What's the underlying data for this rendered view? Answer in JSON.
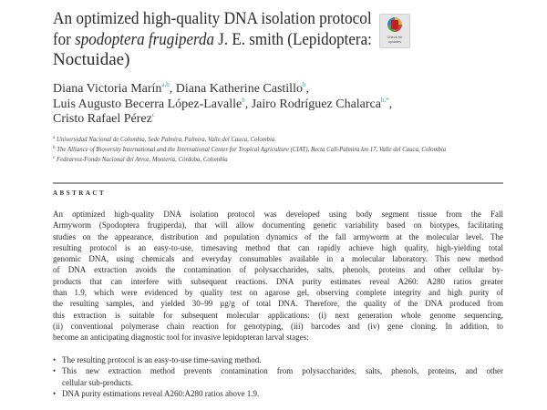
{
  "title": {
    "line1": "An optimized high-quality DNA isolation protocol",
    "line2_pre": "for ",
    "line2_italic": "spodoptera frugiperda",
    "line2_post": " J. E. smith (Lepidoptera:",
    "line3": "Noctuidae)"
  },
  "badge": {
    "label": "Check for updates"
  },
  "authors": [
    {
      "name": "Diana Victoria Marín",
      "sup": "a,b",
      "sep": ", "
    },
    {
      "name": "Diana Katherine Castillo",
      "sup": "b",
      "sep": ","
    },
    {
      "name": "Luis Augusto Becerra López-Lavalle",
      "sup": "b",
      "sep": ", "
    },
    {
      "name": "Jairo Rodríguez Chalarca",
      "sup": "b,*",
      "sep": ","
    },
    {
      "name": "Cristo Rafael Pérez",
      "sup": "c",
      "sep": ""
    }
  ],
  "affiliations": [
    {
      "key": "a",
      "text": "Universidad Nacional de Colombia, Sede Palmira, Palmira, Valle del Cauca, Colombia"
    },
    {
      "key": "b",
      "text": "The Alliance of Bioversity International and the International Center for Tropical Agriculture (CIAT), Recta Cali-Palmira km 17, Valle del Cauca, Colombia"
    },
    {
      "key": "c",
      "text": "Fedearroz-Fondo Nacional del Arroz, Montería, Córdoba, Colombia"
    }
  ],
  "abstract": {
    "heading": "ABSTRACT",
    "lines": [
      "An optimized high-quality DNA isolation protocol was developed using body segment tissue from the Fall",
      "Armyworm (Spodoptera frugiperda), that will allow documenting genetic variability based on biotypes, facilitating",
      "studies on the appearance, distribution and population dynamics of the fall armyworm at the molecular level. The",
      "resulting protocol is an easy-to-use, timesaving method that can rapidly achieve high quality, high-yielding total",
      "genomic DNA, using chemicals and everyday consumables available in a molecular laboratory. This new method",
      "of DNA extraction avoids the contamination of polysaccharides, salts, phenols, proteins and other cellular by-",
      "products that can interfere with subsequent reactions. DNA purity estimates reveal A260: A280 ratios greater",
      "than 1.9, which were evidenced by quality test on agarose gel, observing complete integrity and high purity of",
      "the resulting samples, and yielded 30–99 µg/g of total DNA. Therefore, the quality of the DNA produced from",
      "this extraction is suitable for subsequent molecular applications: (i) next generation whole genome sequencing,",
      "(ii) conventional polymerase chain reaction for genotyping, (iii) barcodes and (iv) gene cloning. In addition, to",
      "become an anticipating diagnostic tool for invasive lepidopteran larval stages:"
    ]
  },
  "highlights": [
    [
      "The resulting protocol is an easy-to-use time-saving method."
    ],
    [
      "This new extraction method prevents contamination from polysaccharides, salts, phenols, proteins, and other",
      "cellular sub-products."
    ],
    [
      "DNA purity estimations reveal A260:A280 ratios above 1.9."
    ]
  ]
}
